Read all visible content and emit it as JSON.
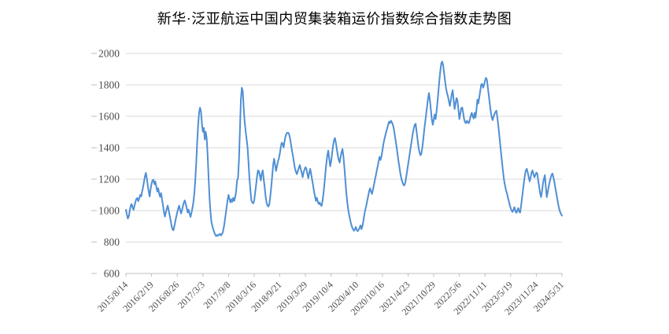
{
  "title": "新华·泛亚航运中国内贸集装箱运价指数综合指数走势图",
  "colors": {
    "line": "#4f8fd4",
    "grid": "#d9d9d9",
    "axis": "#bfbfbf",
    "tick": "#bfbfbf",
    "label_text": "#4d4d4d",
    "title_text": "#000000",
    "background": "#ffffff"
  },
  "chart_data": {
    "type": "line",
    "title": "新华·泛亚航运中国内贸集装箱运价指数综合指数走势图",
    "xlabel": "",
    "ylabel": "",
    "ylim": [
      600,
      2000
    ],
    "y_ticks": [
      600,
      800,
      1000,
      1200,
      1400,
      1600,
      1800,
      2000
    ],
    "grid": "horizontal",
    "legend": "none",
    "x_unit": "weekly observations",
    "x_tick_every_n_points": 27,
    "x_tick_labels": [
      "2015/8/14",
      "2016/2/19",
      "2016/8/26",
      "2017/3/3",
      "2017/9/8",
      "2018/3/16",
      "2018/9/21",
      "2019/3/29",
      "2019/10/4",
      "2020/4/10",
      "2020/10/16",
      "2021/4/23",
      "2021/10/29",
      "2022/5/6",
      "2022/11/11",
      "2023/5/19",
      "2023/11/24",
      "2024/5/31"
    ],
    "values": [
      1005,
      975,
      950,
      962,
      1000,
      1030,
      1042,
      1020,
      1005,
      1032,
      1055,
      1075,
      1080,
      1060,
      1078,
      1100,
      1090,
      1120,
      1148,
      1182,
      1218,
      1240,
      1205,
      1160,
      1120,
      1090,
      1138,
      1172,
      1192,
      1196,
      1168,
      1185,
      1152,
      1122,
      1142,
      1108,
      1088,
      1112,
      1072,
      1035,
      992,
      962,
      988,
      1012,
      1032,
      1002,
      972,
      940,
      905,
      882,
      875,
      902,
      932,
      962,
      988,
      1012,
      1032,
      1006,
      982,
      1002,
      1028,
      1052,
      1065,
      1042,
      1015,
      988,
      1006,
      982,
      960,
      986,
      1016,
      1052,
      1108,
      1192,
      1302,
      1432,
      1542,
      1622,
      1655,
      1630,
      1552,
      1502,
      1526,
      1452,
      1502,
      1462,
      1356,
      1212,
      1082,
      992,
      926,
      902,
      880,
      862,
      846,
      838,
      845,
      840,
      848,
      852,
      842,
      850,
      862,
      892,
      932,
      976,
      1022,
      1066,
      1100,
      1076,
      1052,
      1072,
      1056,
      1082,
      1062,
      1086,
      1122,
      1192,
      1208,
      1322,
      1512,
      1702,
      1782,
      1760,
      1652,
      1566,
      1506,
      1456,
      1406,
      1312,
      1206,
      1132,
      1066,
      1052,
      1046,
      1062,
      1112,
      1162,
      1216,
      1256,
      1250,
      1222,
      1192,
      1236,
      1256,
      1202,
      1152,
      1092,
      1052,
      1032,
      1026,
      1042,
      1092,
      1152,
      1222,
      1292,
      1330,
      1292,
      1252,
      1282,
      1312,
      1332,
      1362,
      1402,
      1432,
      1426,
      1402,
      1442,
      1472,
      1490,
      1496,
      1495,
      1480,
      1452,
      1412,
      1376,
      1342,
      1302,
      1266,
      1246,
      1232,
      1252,
      1272,
      1290,
      1266,
      1242,
      1212,
      1242,
      1262,
      1276,
      1266,
      1232,
      1206,
      1242,
      1266,
      1232,
      1196,
      1162,
      1122,
      1092,
      1062,
      1082,
      1056,
      1042,
      1052,
      1036,
      1030,
      1062,
      1112,
      1172,
      1242,
      1302,
      1352,
      1382,
      1332,
      1282,
      1312,
      1362,
      1412,
      1446,
      1462,
      1432,
      1392,
      1352,
      1322,
      1306,
      1342,
      1372,
      1392,
      1342,
      1272,
      1192,
      1112,
      1056,
      1006,
      972,
      942,
      916,
      896,
      882,
      872,
      882,
      896,
      876,
      870,
      878,
      892,
      906,
      882,
      902,
      936,
      976,
      1006,
      1032,
      1062,
      1092,
      1122,
      1142,
      1122,
      1106,
      1132,
      1162,
      1192,
      1222,
      1252,
      1282,
      1312,
      1342,
      1322,
      1346,
      1382,
      1422,
      1452,
      1476,
      1502,
      1522,
      1546,
      1566,
      1556,
      1572,
      1562,
      1546,
      1522,
      1482,
      1442,
      1402,
      1356,
      1312,
      1272,
      1232,
      1202,
      1182,
      1166,
      1160,
      1176,
      1212,
      1252,
      1292,
      1332,
      1372,
      1412,
      1452,
      1492,
      1522,
      1546,
      1552,
      1502,
      1452,
      1402,
      1372,
      1352,
      1362,
      1402,
      1452,
      1512,
      1562,
      1612,
      1662,
      1712,
      1748,
      1702,
      1642,
      1582,
      1546,
      1576,
      1612,
      1582,
      1632,
      1692,
      1762,
      1832,
      1892,
      1938,
      1948,
      1922,
      1872,
      1822,
      1778,
      1748,
      1726,
      1696,
      1666,
      1702,
      1742,
      1766,
      1702,
      1646,
      1682,
      1716,
      1702,
      1642,
      1582,
      1616,
      1652,
      1656,
      1622,
      1582,
      1562,
      1556,
      1572,
      1562,
      1556,
      1578,
      1602,
      1622,
      1602,
      1586,
      1622,
      1592,
      1642,
      1706,
      1682,
      1722,
      1762,
      1802,
      1806,
      1782,
      1800,
      1826,
      1845,
      1832,
      1782,
      1732,
      1682,
      1632,
      1596,
      1576,
      1598,
      1616,
      1628,
      1636,
      1592,
      1542,
      1482,
      1422,
      1362,
      1302,
      1246,
      1196,
      1162,
      1132,
      1112,
      1086,
      1062,
      1036,
      1016,
      1000,
      992,
      1006,
      1022,
      996,
      986,
      1002,
      1016,
      992,
      988,
      1032,
      1082,
      1132,
      1182,
      1226,
      1256,
      1266,
      1242,
      1212,
      1186,
      1212,
      1242,
      1256,
      1232,
      1212,
      1226,
      1242,
      1236,
      1192,
      1152,
      1112,
      1086,
      1122,
      1172,
      1202,
      1226,
      1152,
      1086,
      1116,
      1152,
      1182,
      1206,
      1226,
      1236,
      1212,
      1182,
      1146,
      1112,
      1076,
      1042,
      1012,
      992,
      978,
      968
    ]
  }
}
